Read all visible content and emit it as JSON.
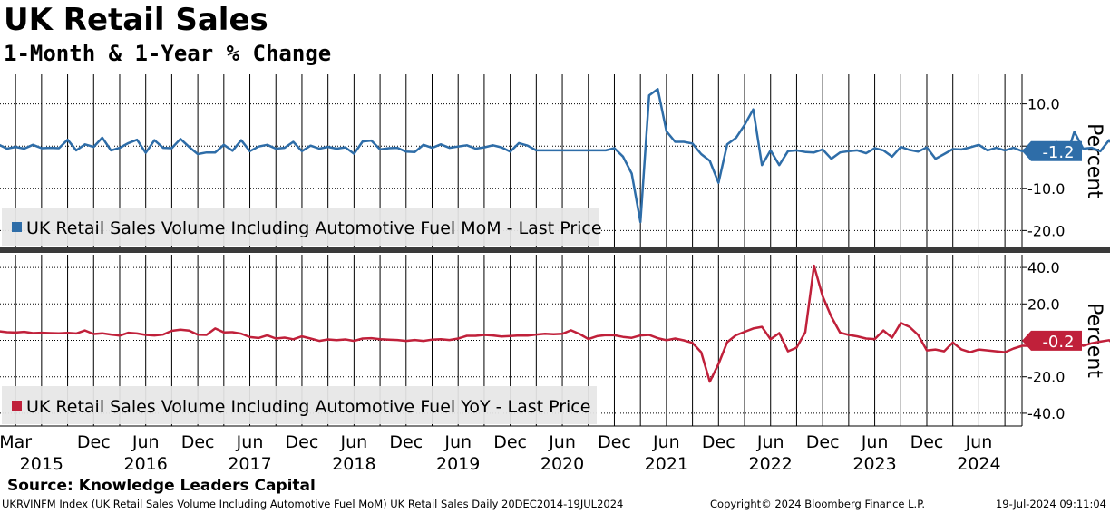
{
  "title": "UK Retail Sales",
  "subtitle": "1-Month & 1-Year % Change",
  "footer": {
    "source": "Source: Knowledge Leaders Capital",
    "meta": "UKRVINFM Index (UK Retail Sales Volume Including Automotive Fuel MoM) UK Retail Sales  Daily 20DEC2014-19JUL2024",
    "copyright": "Copyright© 2024 Bloomberg Finance L.P.",
    "timestamp": "19-Jul-2024 09:11:04"
  },
  "colors": {
    "mom": "#2e6da8",
    "yoy": "#c0203a"
  },
  "chart_data": [
    {
      "type": "line",
      "ylabel": "Percent",
      "ylim": [
        -24,
        17
      ],
      "yticks": [
        10.0,
        0,
        -10.0,
        -20.0
      ],
      "ytick_labels": [
        "10.0",
        "",
        "-10.0",
        "-20.0"
      ],
      "grid": true,
      "legend": "bottom-left",
      "last_value_label": "-1.2",
      "series": [
        {
          "name": "UK Retail Sales Volume Including Automotive Fuel MoM - Last Price",
          "x_start": "2015-01",
          "y": [
            0.4,
            -0.6,
            -0.2,
            -0.6,
            0.3,
            -0.5,
            -0.4,
            -0.5,
            1.5,
            -1.0,
            0.4,
            -0.2,
            2.0,
            -1.0,
            -0.4,
            0.7,
            1.5,
            -1.6,
            1.4,
            -0.4,
            -0.5,
            1.7,
            -0.2,
            -1.9,
            -1.5,
            -1.5,
            0.3,
            -1.1,
            1.4,
            -1.2,
            -0.1,
            0.3,
            -0.6,
            -0.4,
            1.0,
            -1.2,
            0.1,
            -0.6,
            -0.2,
            -0.6,
            -0.3,
            -1.8,
            1.1,
            1.3,
            -0.8,
            -0.5,
            -0.4,
            -1.3,
            -1.4,
            0.3,
            -0.4,
            0.4,
            -0.4,
            -0.1,
            0.2,
            -0.6,
            -0.3,
            0.2,
            -0.3,
            -1.3,
            0.7,
            0.1,
            -1.0,
            -1.0,
            -1.0,
            -1.0,
            -1.0,
            -1.0,
            -1.0,
            -1.0,
            -1.0,
            -0.5,
            -2.5,
            -6.5,
            -18.0,
            12.0,
            13.5,
            3.5,
            1.0,
            1.0,
            0.6,
            -1.9,
            -3.5,
            -8.7,
            0.4,
            1.9,
            5.0,
            8.7,
            -4.5,
            -1.0,
            -4.5,
            -1.2,
            -1.0,
            -1.4,
            -1.5,
            -0.8,
            -3.0,
            -1.5,
            -1.2,
            -1.0,
            -1.7,
            -0.5,
            -1.0,
            -2.5,
            -0.2,
            -0.9,
            -1.3,
            -0.3,
            -3.0,
            -1.9,
            -0.7,
            -0.8,
            -0.3,
            0.3,
            -1.0,
            -0.4,
            -1.0,
            -0.4,
            -1.2,
            0.2,
            -0.4,
            -1.0,
            0.9,
            -3.0,
            3.4,
            -0.6,
            -0.4,
            -1.2,
            1.4,
            -1.2
          ]
        }
      ]
    },
    {
      "type": "line",
      "ylabel": "Percent",
      "ylim": [
        -47,
        47
      ],
      "yticks": [
        40.0,
        20.0,
        0,
        -20.0,
        -40.0
      ],
      "ytick_labels": [
        "40.0",
        "20.0",
        "",
        "-20.0",
        "-40.0"
      ],
      "grid": true,
      "legend": "bottom-left",
      "last_value_label": "-0.2",
      "series": [
        {
          "name": "UK Retail Sales Volume Including Automotive Fuel YoY - Last Price",
          "x_start": "2015-01",
          "y": [
            5.0,
            4.5,
            4.3,
            4.7,
            4.0,
            4.2,
            4.0,
            3.9,
            4.1,
            3.8,
            5.4,
            3.5,
            3.9,
            3.2,
            2.6,
            4.2,
            3.8,
            3.0,
            2.7,
            3.2,
            5.2,
            5.8,
            5.3,
            3.1,
            3.0,
            6.5,
            4.4,
            4.5,
            3.7,
            1.8,
            1.3,
            2.8,
            1.0,
            1.5,
            0.6,
            2.2,
            1.0,
            -0.3,
            0.5,
            0.1,
            0.5,
            -0.3,
            1.0,
            1.2,
            0.6,
            0.4,
            0.2,
            -0.3,
            0.2,
            -0.3,
            0.4,
            0.6,
            0.2,
            1.0,
            2.5,
            2.5,
            3.0,
            2.7,
            2.1,
            2.4,
            2.7,
            2.6,
            3.2,
            3.6,
            3.4,
            3.6,
            5.5,
            3.5,
            0.7,
            2.3,
            2.9,
            2.8,
            1.9,
            1.4,
            2.7,
            3.0,
            1.2,
            0.1,
            1.0,
            0.0,
            -1.4,
            -6.5,
            -22.7,
            -13.0,
            -1.0,
            2.8,
            4.7,
            6.5,
            7.4,
            0.6,
            4.0,
            -6.0,
            -4.0,
            4.5,
            41.0,
            24.2,
            13.0,
            4.3,
            3.0,
            2.2,
            1.0,
            0.7,
            5.4,
            1.5,
            9.6,
            7.4,
            3.0,
            -5.5,
            -5.0,
            -6.0,
            -1.2,
            -5.0,
            -6.5,
            -5.0,
            -5.5,
            -6.0,
            -6.5,
            -4.5,
            -3.0,
            -3.0,
            -1.5,
            -2.0,
            -0.7,
            -1.5,
            -0.9,
            -3.0,
            -1.6,
            -0.7,
            0.1,
            -3.8,
            1.1,
            0.8,
            1.0,
            -0.4,
            2.3,
            -0.2
          ]
        }
      ]
    }
  ],
  "x_axis": {
    "month_ticks": [
      "Mar",
      "Dec",
      "Jun",
      "Dec",
      "Jun",
      "Dec",
      "Jun",
      "Dec",
      "Jun",
      "Dec",
      "Jun",
      "Dec",
      "Jun",
      "Dec",
      "Jun",
      "Dec",
      "Jun",
      "Dec",
      "Jun"
    ],
    "years": [
      "2015",
      "2016",
      "2017",
      "2018",
      "2019",
      "2020",
      "2021",
      "2022",
      "2023",
      "2024"
    ]
  }
}
